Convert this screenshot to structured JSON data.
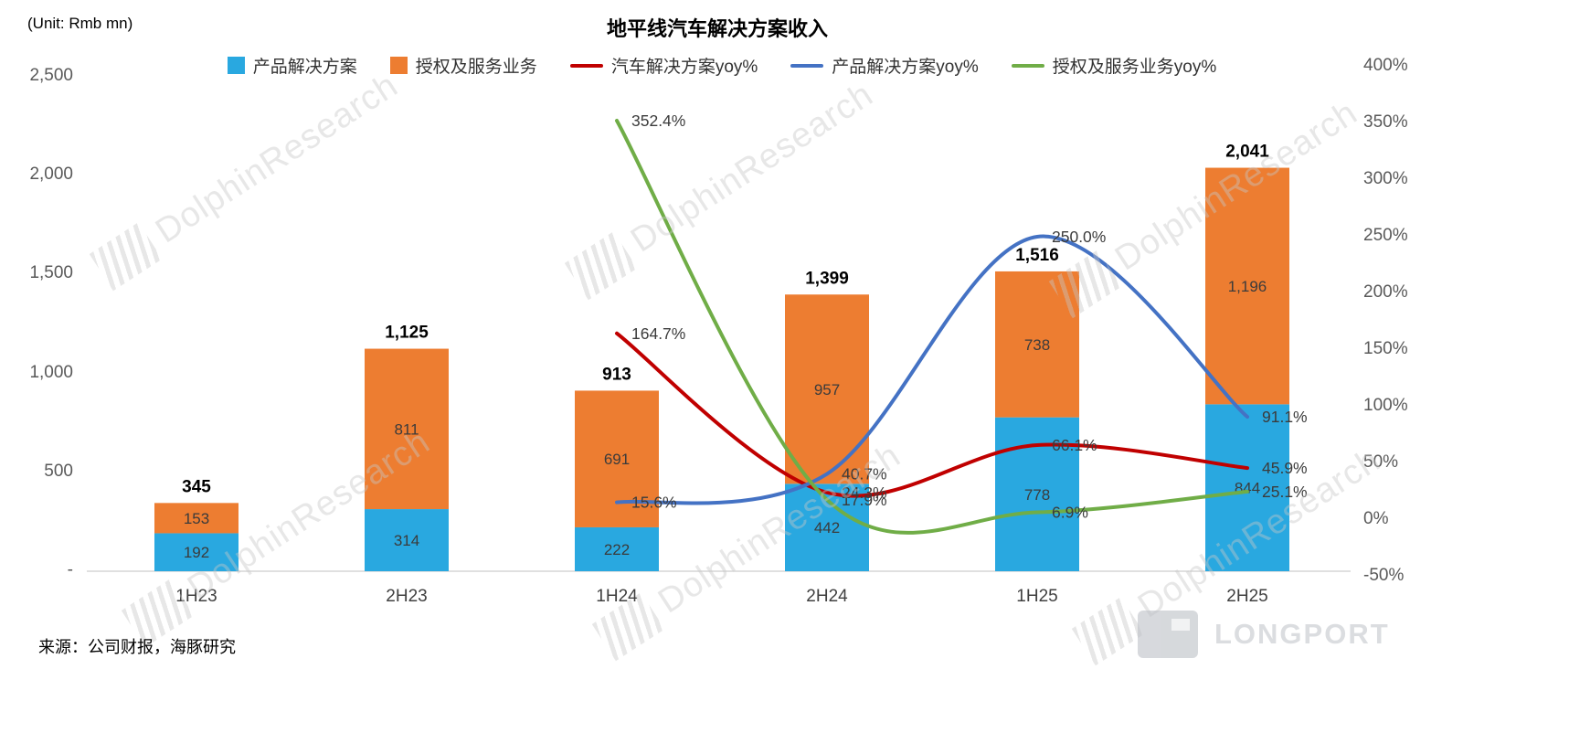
{
  "unit_label": "(Unit: Rmb mn)",
  "title": "地平线汽车解决方案收入",
  "source": "来源：公司财报，海豚研究",
  "watermark_text": "DolphinResearch",
  "logo_text": "LONGPORT",
  "colors": {
    "product_bar": "#29a8e0",
    "license_bar": "#ed7d31",
    "auto_yoy_line": "#c00000",
    "product_yoy_line": "#4472c4",
    "license_yoy_line": "#70ad47",
    "axis_text": "#595959",
    "axis_line": "#d6d6d6",
    "bar_label": "#3b3b3b",
    "total_label": "#000000"
  },
  "legend": [
    {
      "label": "产品解决方案",
      "type": "bar",
      "color": "#29a8e0"
    },
    {
      "label": "授权及服务业务",
      "type": "bar",
      "color": "#ed7d31"
    },
    {
      "label": "汽车解决方案yoy%",
      "type": "line",
      "color": "#c00000"
    },
    {
      "label": "产品解决方案yoy%",
      "type": "line",
      "color": "#4472c4"
    },
    {
      "label": "授权及服务业务yoy%",
      "type": "line",
      "color": "#70ad47"
    }
  ],
  "chart_data": {
    "type": "combo: stacked bar + smoothed line",
    "title": "地平线汽车解决方案收入",
    "categories": [
      "1H23",
      "2H23",
      "1H24",
      "2H24",
      "1H25",
      "2H25"
    ],
    "bar_series": [
      {
        "name": "产品解决方案",
        "color": "#29a8e0",
        "values": [
          192,
          314,
          222,
          442,
          778,
          844
        ]
      },
      {
        "name": "授权及服务业务",
        "color": "#ed7d31",
        "values": [
          153,
          811,
          691,
          957,
          738,
          1196
        ]
      }
    ],
    "total_labels": [
      "345",
      "1,125",
      "913",
      "1,399",
      "1,516",
      "2,041"
    ],
    "line_series": [
      {
        "name": "汽车解决方案yoy%",
        "color": "#c00000",
        "values": [
          null,
          null,
          164.7,
          24.3,
          66.1,
          45.9
        ],
        "point_labels": [
          "",
          "",
          "164.7%",
          "24.3%",
          "66.1%",
          "45.9%"
        ]
      },
      {
        "name": "产品解决方案yoy%",
        "color": "#4472c4",
        "values": [
          null,
          null,
          15.6,
          40.7,
          250.0,
          91.1
        ],
        "point_labels": [
          "",
          "",
          "15.6%",
          "40.7%",
          "250.0%",
          "91.1%"
        ]
      },
      {
        "name": "授权及服务业务yoy%",
        "color": "#70ad47",
        "values": [
          null,
          null,
          352.4,
          17.9,
          6.9,
          25.1
        ],
        "point_labels": [
          "",
          "",
          "352.4%",
          "17.9%",
          "6.9%",
          "25.1%"
        ]
      }
    ],
    "left_axis": {
      "min": 0,
      "max": 2500,
      "tick_labels": [
        "2,500",
        "2,000",
        "1,500",
        "1,000",
        "500",
        "-"
      ]
    },
    "right_axis": {
      "min": -50,
      "max": 400,
      "tick_labels": [
        "400%",
        "350%",
        "300%",
        "250%",
        "200%",
        "150%",
        "100%",
        "50%",
        "0%",
        "-50%"
      ]
    },
    "legend_position": "top",
    "grid": false
  }
}
